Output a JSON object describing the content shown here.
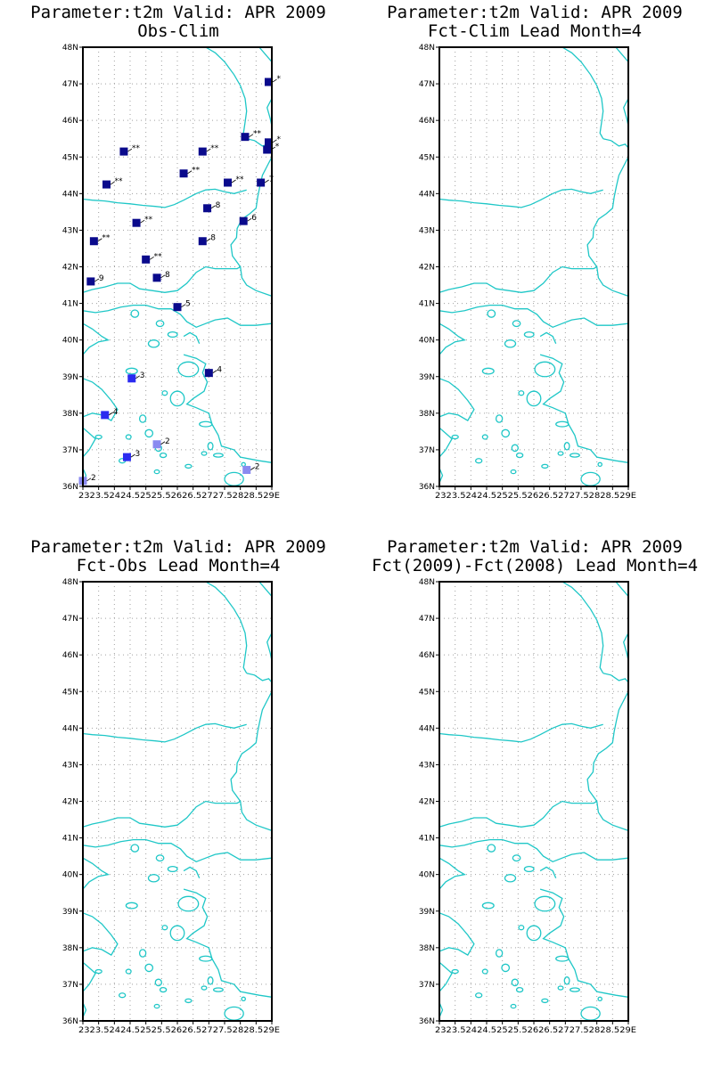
{
  "colors": {
    "coastline": "#1fc7c7",
    "grid": "#a0a0a0",
    "dark_blue": "#0a0a8c",
    "blue": "#2b2bf0",
    "light_blue": "#8a8af0"
  },
  "axes": {
    "lat_labels": [
      "36N",
      "37N",
      "38N",
      "39N",
      "40N",
      "41N",
      "42N",
      "43N",
      "44N",
      "45N",
      "46N",
      "47N",
      "48N"
    ],
    "lon_labels": [
      "23",
      "23.5",
      "24",
      "24.5",
      "25",
      "25.5",
      "26",
      "26.5",
      "27",
      "27.5",
      "28",
      "28.5",
      "29E"
    ],
    "lon_label_row": "2323.52424.52525.52626.52727.52828.529E"
  },
  "panels": [
    {
      "title_line1": "Parameter:t2m Valid: APR 2009",
      "title_line2": "Obs-Clim",
      "stations": [
        {
          "lat": 47.05,
          "lon": 28.9,
          "label": "*",
          "color": "dark_blue"
        },
        {
          "lat": 45.55,
          "lon": 28.15,
          "label": "**",
          "color": "dark_blue"
        },
        {
          "lat": 45.4,
          "lon": 28.9,
          "label": "*",
          "color": "dark_blue"
        },
        {
          "lat": 45.2,
          "lon": 28.85,
          "label": "*",
          "color": "dark_blue"
        },
        {
          "lat": 45.15,
          "lon": 24.3,
          "label": "**",
          "color": "dark_blue"
        },
        {
          "lat": 45.15,
          "lon": 26.8,
          "label": "**",
          "color": "dark_blue"
        },
        {
          "lat": 44.55,
          "lon": 26.2,
          "label": "**",
          "color": "dark_blue"
        },
        {
          "lat": 44.3,
          "lon": 27.6,
          "label": "**",
          "color": "dark_blue"
        },
        {
          "lat": 44.3,
          "lon": 28.65,
          "label": "7",
          "color": "dark_blue"
        },
        {
          "lat": 44.25,
          "lon": 23.75,
          "label": "**",
          "color": "dark_blue"
        },
        {
          "lat": 43.6,
          "lon": 26.95,
          "label": "8",
          "color": "dark_blue"
        },
        {
          "lat": 43.25,
          "lon": 28.1,
          "label": "6",
          "color": "dark_blue"
        },
        {
          "lat": 43.2,
          "lon": 24.7,
          "label": "**",
          "color": "dark_blue"
        },
        {
          "lat": 42.7,
          "lon": 23.35,
          "label": "**",
          "color": "dark_blue"
        },
        {
          "lat": 42.7,
          "lon": 26.8,
          "label": "8",
          "color": "dark_blue"
        },
        {
          "lat": 42.2,
          "lon": 25.0,
          "label": "**",
          "color": "dark_blue"
        },
        {
          "lat": 41.7,
          "lon": 25.35,
          "label": "8",
          "color": "dark_blue"
        },
        {
          "lat": 41.6,
          "lon": 23.25,
          "label": "9",
          "color": "dark_blue"
        },
        {
          "lat": 40.9,
          "lon": 26.0,
          "label": "5",
          "color": "dark_blue"
        },
        {
          "lat": 39.1,
          "lon": 27.0,
          "label": "4",
          "color": "dark_blue"
        },
        {
          "lat": 38.95,
          "lon": 24.55,
          "label": "3",
          "color": "blue"
        },
        {
          "lat": 37.95,
          "lon": 23.7,
          "label": "4",
          "color": "blue"
        },
        {
          "lat": 37.15,
          "lon": 25.35,
          "label": "2",
          "color": "light_blue"
        },
        {
          "lat": 36.8,
          "lon": 24.4,
          "label": "3",
          "color": "blue"
        },
        {
          "lat": 36.45,
          "lon": 28.2,
          "label": "2",
          "color": "light_blue"
        },
        {
          "lat": 36.15,
          "lon": 23.0,
          "label": "2",
          "color": "light_blue"
        }
      ]
    },
    {
      "title_line1": "Parameter:t2m Valid: APR 2009",
      "title_line2": "Fct-Clim Lead Month=4",
      "stations": []
    },
    {
      "title_line1": "Parameter:t2m Valid: APR 2009",
      "title_line2": "Fct-Obs Lead Month=4",
      "stations": []
    },
    {
      "title_line1": "Parameter:t2m Valid: APR 2009",
      "title_line2": "Fct(2009)-Fct(2008) Lead Month=4",
      "stations": []
    }
  ]
}
